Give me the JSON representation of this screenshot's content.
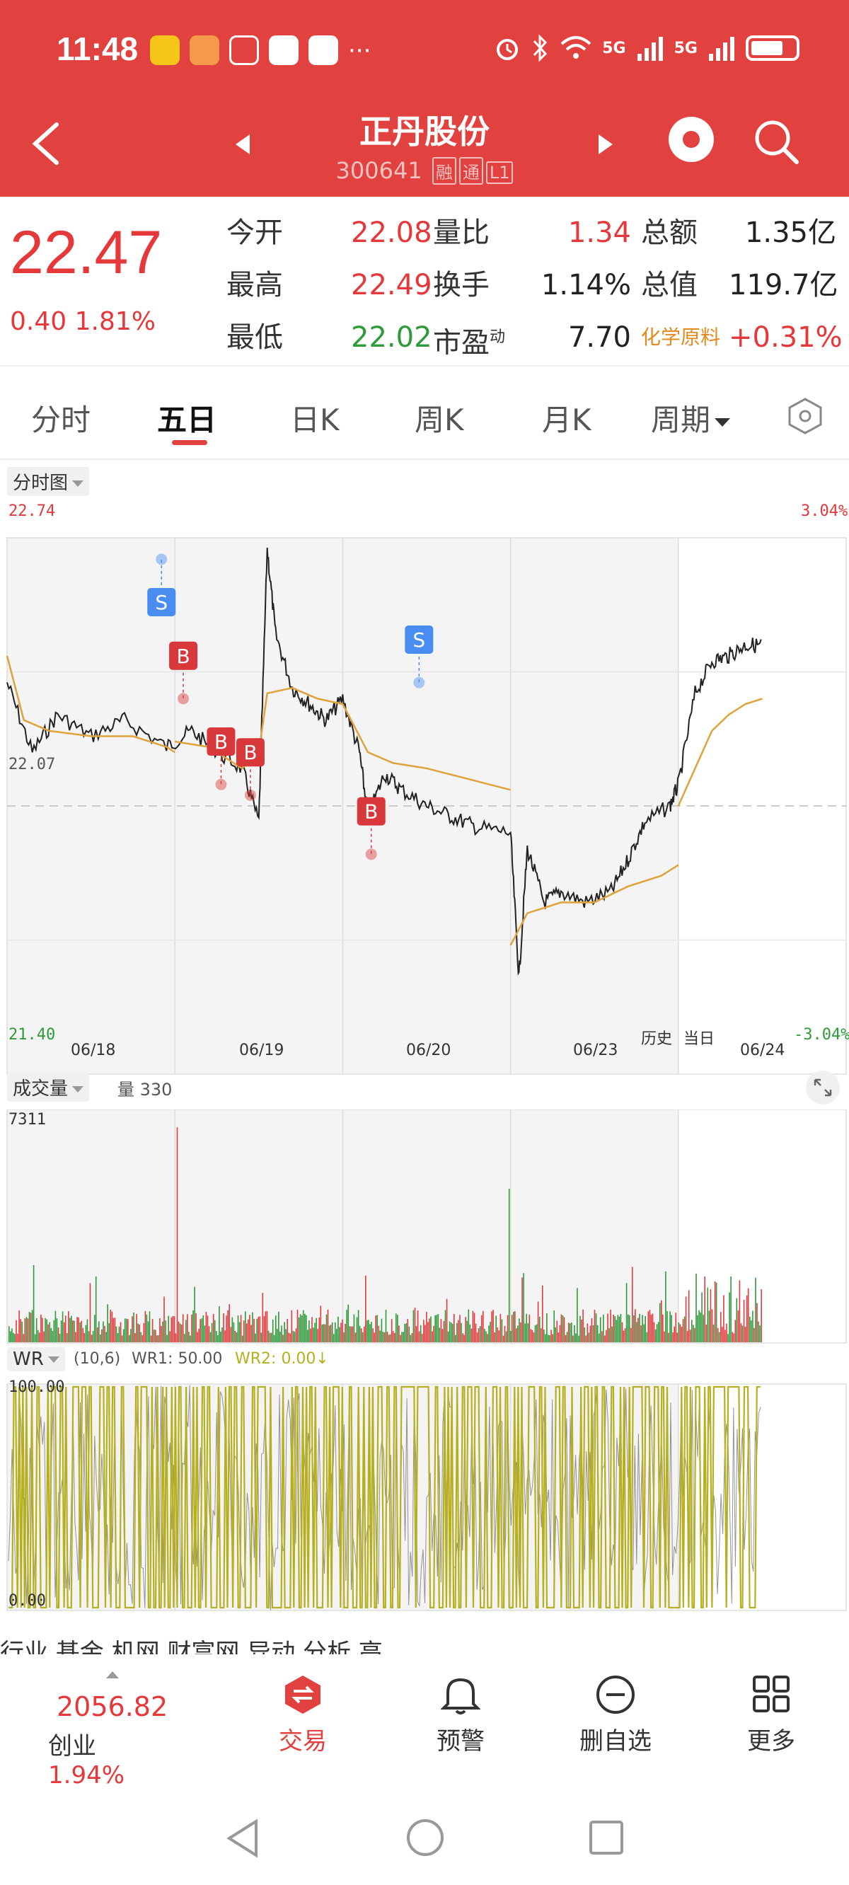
{
  "status_bar": {
    "time": "11:48",
    "dots": "···",
    "network": "5G",
    "network2": "5G"
  },
  "header": {
    "stock_name": "正丹股份",
    "stock_code": "300641",
    "tags": [
      "融",
      "通",
      "L1"
    ]
  },
  "quote": {
    "price": "22.47",
    "change": "0.40",
    "change_pct": "1.81%",
    "rows": [
      {
        "l1": "今开",
        "v1": "22.08",
        "l2": "量比",
        "v2": "1.34",
        "l3": "总额",
        "v3": "1.35亿"
      },
      {
        "l1": "最高",
        "v1": "22.49",
        "l2": "换手",
        "v2": "1.14%",
        "l3": "总值",
        "v3": "119.7亿"
      },
      {
        "l1": "最低",
        "v1": "22.02",
        "l2": "市盈",
        "l2_sup": "动",
        "v2": "7.70",
        "l3": "化学原料",
        "v3": "+0.31%"
      }
    ]
  },
  "tabs": [
    "分时",
    "五日",
    "日K",
    "周K",
    "月K",
    "周期"
  ],
  "chart": {
    "selector": "分时图",
    "y_top": "22.74",
    "y_mid": "22.07",
    "y_bottom": "21.40",
    "pct_top": "3.04%",
    "pct_bottom": "-3.04%",
    "dates": [
      "06/18",
      "06/19",
      "06/20",
      "06/23",
      "06/24"
    ],
    "history_label": "历史",
    "today_label": "当日",
    "markers": [
      "S",
      "B",
      "B",
      "B",
      "B",
      "S"
    ]
  },
  "volume": {
    "selector": "成交量",
    "label": "量 330",
    "max": "7311"
  },
  "wr": {
    "selector": "WR",
    "params": "(10,6)",
    "wr1": "WR1: 50.00",
    "wr2": "WR2: 0.00↓",
    "top": "100.00",
    "bottom": "0.00"
  },
  "bottom_strip": "行业   基金   机网   财富网   异动   分析   高",
  "bottom_nav": {
    "index_value": "2056.82",
    "index_name": "创业",
    "index_pct": "1.94%",
    "items": [
      "交易",
      "预警",
      "删自选",
      "更多"
    ]
  },
  "colors": {
    "brand": "#e2423f",
    "up": "#e5383b",
    "down": "#2e9a3a",
    "avg": "#e0a23a",
    "wr": "#b6b020"
  }
}
